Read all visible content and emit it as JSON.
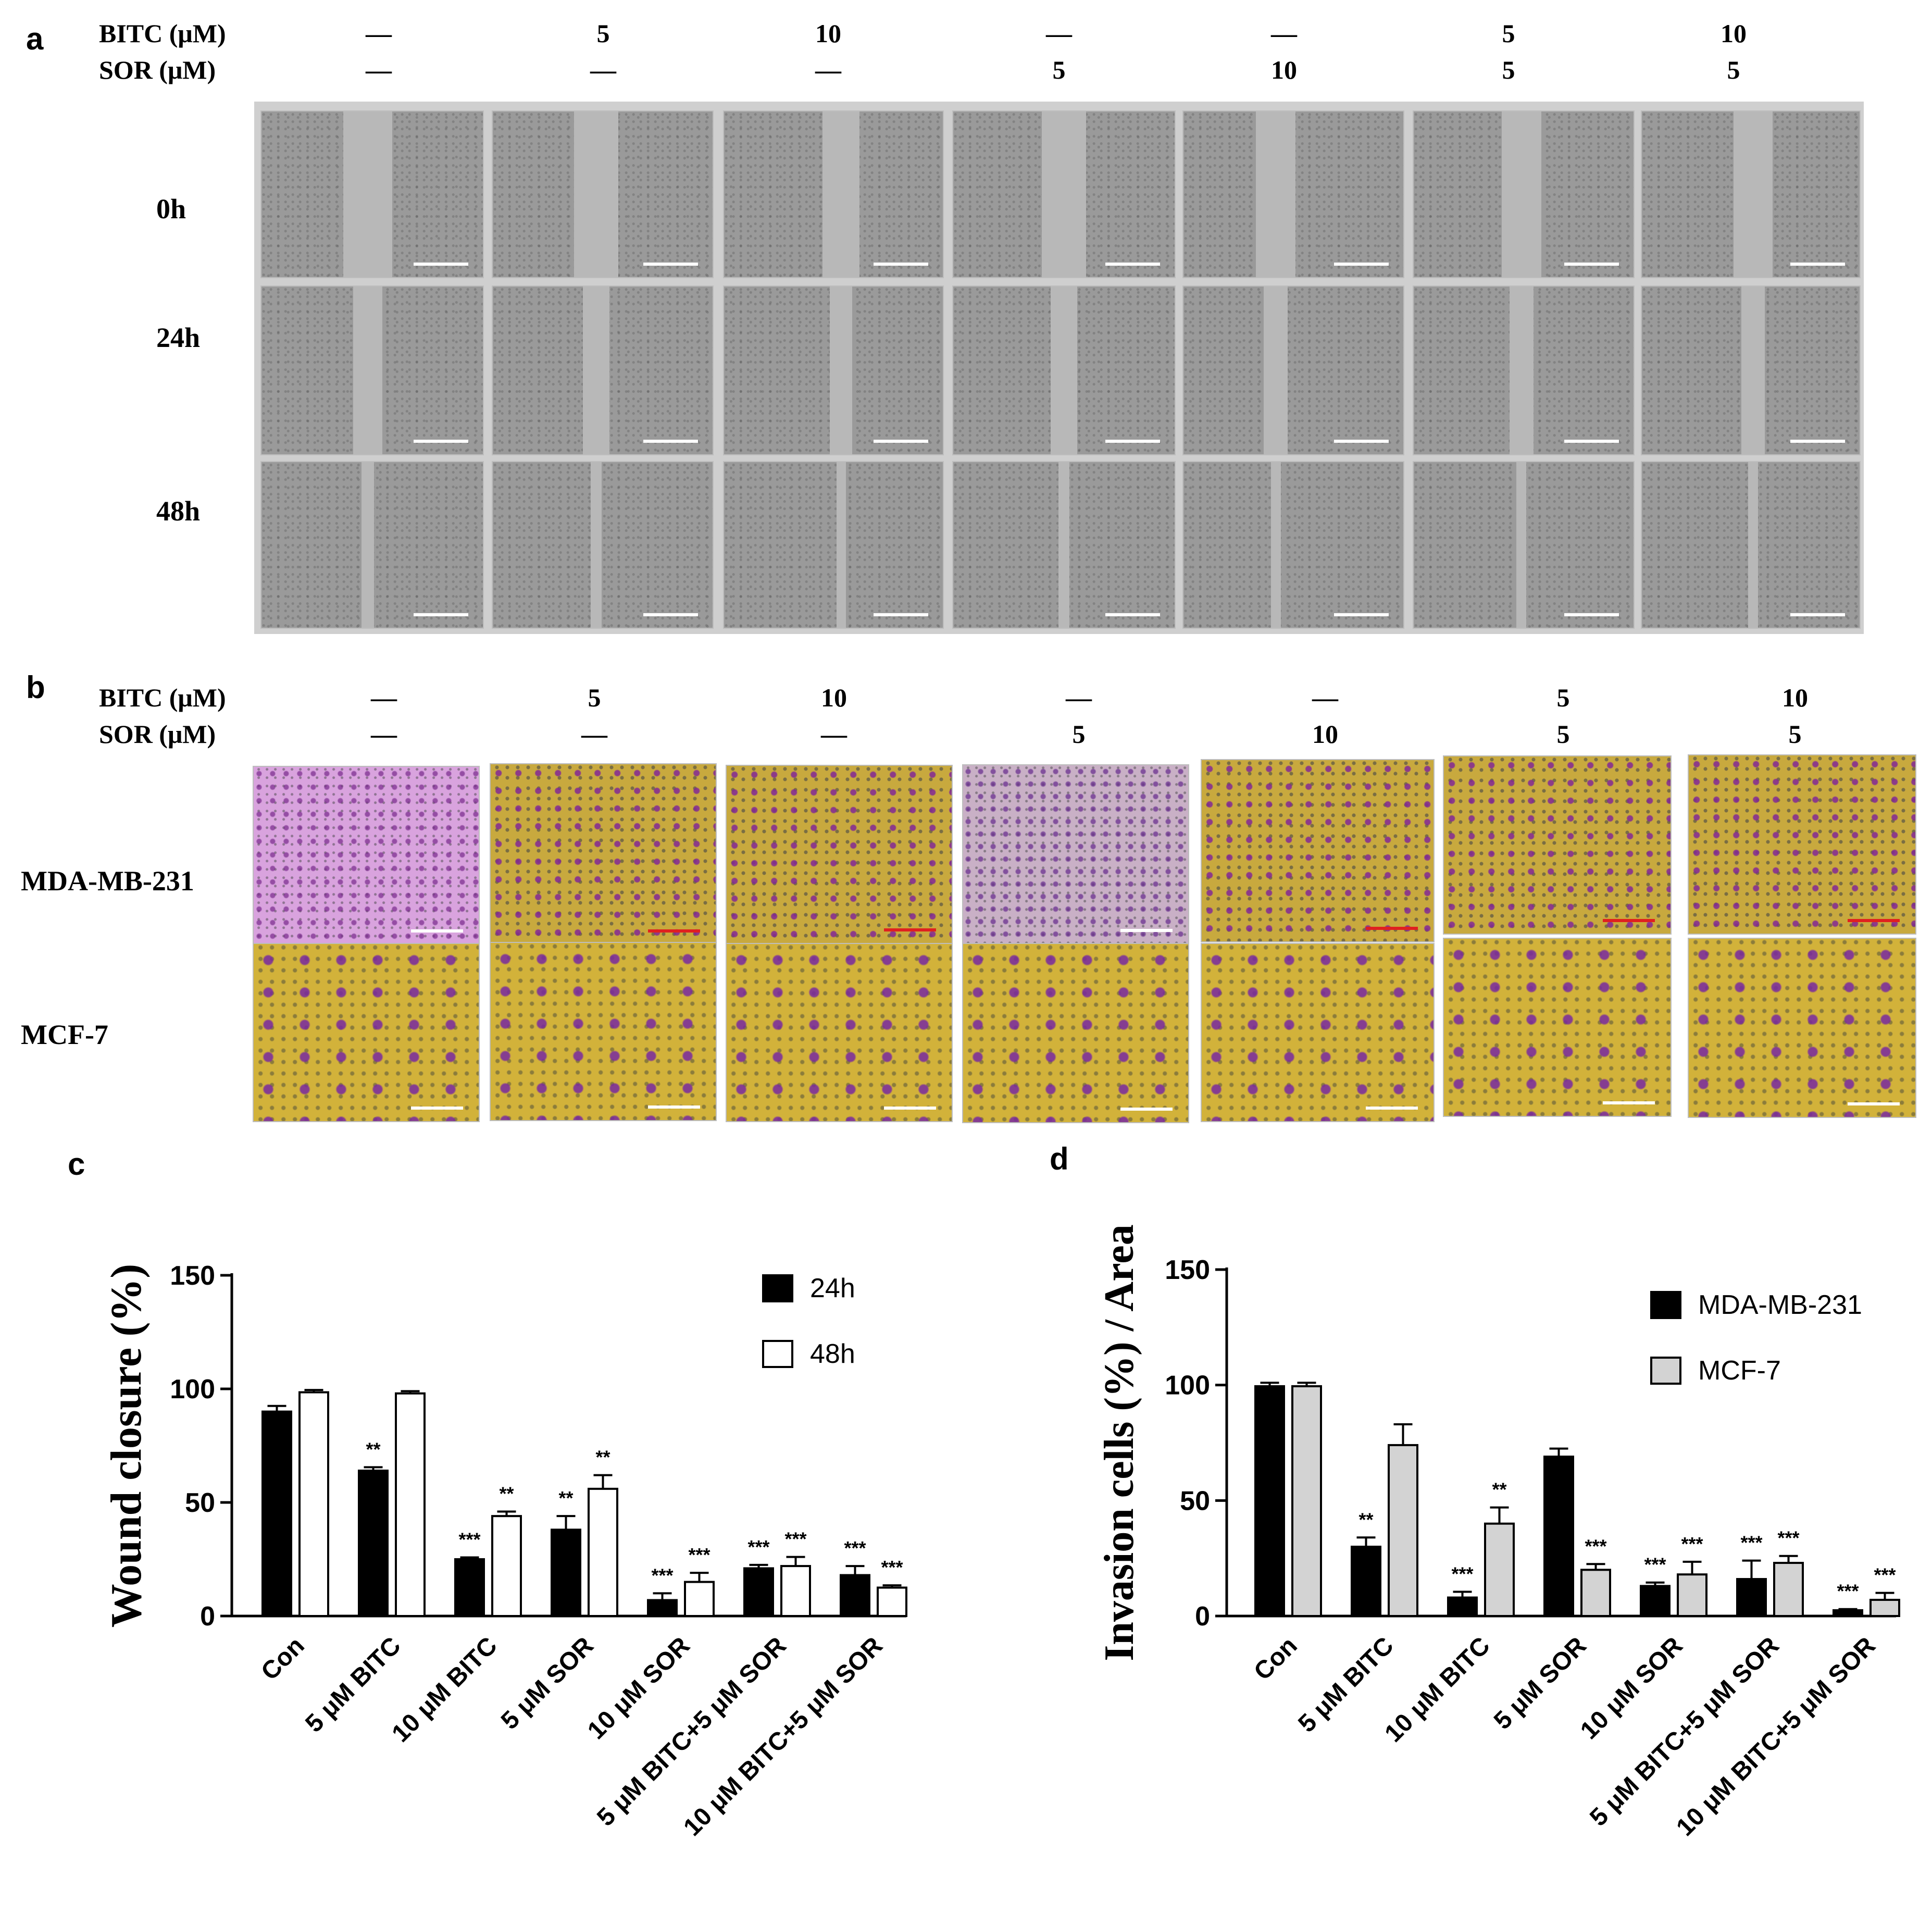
{
  "panels": {
    "a": "a",
    "b": "b",
    "c": "c",
    "d": "d"
  },
  "treatment_header": {
    "bitc_label": "BITC (μM)",
    "sor_label": "SOR  (μM)",
    "bitc_values": [
      "—",
      "5",
      "10",
      "—",
      "—",
      "5",
      "10"
    ],
    "sor_values": [
      "—",
      "—",
      "—",
      "5",
      "10",
      "5",
      "5"
    ]
  },
  "panel_a": {
    "rows": [
      "0h",
      "24h",
      "48h"
    ]
  },
  "panel_b": {
    "rows": [
      "MDA-MB-231",
      "MCF-7"
    ]
  },
  "chart_data": [
    {
      "type": "bar",
      "panel": "c",
      "ylabel": "Wound closure (%)",
      "ylim": [
        0,
        150
      ],
      "yticks": [
        0,
        50,
        100,
        150
      ],
      "categories": [
        "Con",
        "5 μM BITC",
        "10 μM BITC",
        "5 μM SOR",
        "10 μM SOR",
        "5 μM BITC+5 μM SOR",
        "10 μM BITC+5 μM SOR"
      ],
      "series": [
        {
          "name": "24h",
          "color": "#000000",
          "values": [
            90,
            64,
            25,
            38,
            7,
            21,
            18
          ],
          "errors": [
            2.5,
            1.5,
            0.8,
            6,
            3,
            1.5,
            4
          ],
          "significance": [
            "",
            "**",
            "***",
            "**",
            "***",
            "***",
            "***"
          ]
        },
        {
          "name": "48h",
          "color": "#ffffff",
          "values": [
            98.5,
            98,
            44,
            56,
            15,
            22,
            12.5
          ],
          "errors": [
            1,
            1,
            2,
            6,
            4,
            4,
            1
          ],
          "significance": [
            "",
            "",
            "**",
            "**",
            "***",
            "***",
            "***"
          ]
        }
      ],
      "legend": "top-right",
      "grid": false
    },
    {
      "type": "bar",
      "panel": "d",
      "ylabel": "Invasion cells (%) / Area",
      "ylim": [
        0,
        150
      ],
      "yticks": [
        0,
        50,
        100,
        150
      ],
      "categories": [
        "Con",
        "5 μM BITC",
        "10 μM BITC",
        "5 μM SOR",
        "10 μM SOR",
        "5 μM BITC+5 μM SOR",
        "10 μM BITC+5 μM SOR"
      ],
      "series": [
        {
          "name": "MDA-MB-231",
          "color": "#000000",
          "values": [
            99.5,
            30,
            8,
            69,
            13,
            16,
            2.5
          ],
          "errors": [
            1.5,
            4,
            2.5,
            3.5,
            1.5,
            8,
            0.5
          ],
          "significance": [
            "",
            "**",
            "***",
            "",
            "***",
            "***",
            "***"
          ]
        },
        {
          "name": "MCF-7",
          "color": "#d3d3d3",
          "values": [
            99.5,
            74,
            40,
            20,
            18,
            23,
            7
          ],
          "errors": [
            1.5,
            9,
            7,
            2.5,
            5.5,
            3,
            3
          ],
          "significance": [
            "",
            "",
            "**",
            "***",
            "***",
            "***",
            "***"
          ]
        }
      ],
      "legend": "top-right",
      "grid": false
    }
  ]
}
